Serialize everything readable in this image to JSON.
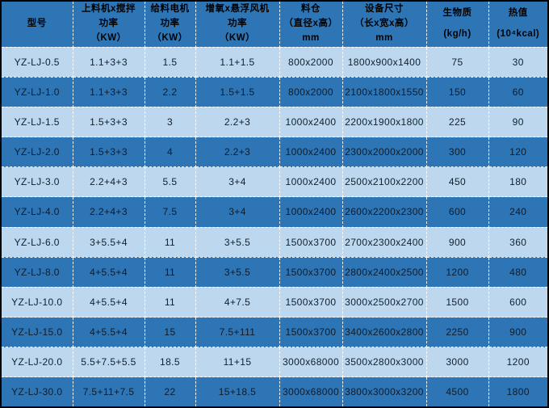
{
  "colors": {
    "header_bg": "#2e75b6",
    "dark_row_bg": "#2e75b6",
    "light_row_bg": "#bdd7ee",
    "grid_line": "#ffffff",
    "outer_border": "#000000",
    "text": "#000000"
  },
  "table": {
    "columns": [
      {
        "id": "model",
        "label_lines": [
          "型号"
        ]
      },
      {
        "id": "feeder-mixer-power",
        "label_lines": [
          "上料机x搅拌",
          "功率",
          "（KW）"
        ]
      },
      {
        "id": "feed-motor-power",
        "label_lines": [
          "给料电机",
          "功率",
          "（KW）"
        ]
      },
      {
        "id": "oxygen-fan-power",
        "label_lines": [
          "增氧x悬浮风机",
          "功率",
          "（KW）"
        ]
      },
      {
        "id": "hopper-size",
        "label_lines": [
          "料仓",
          "（直径x高）",
          "mm"
        ]
      },
      {
        "id": "equipment-size",
        "label_lines": [
          "设备尺寸",
          "（长x宽x高）",
          "mm"
        ]
      },
      {
        "id": "biomass",
        "label_lines": [
          "生物质",
          "(kg/h)"
        ]
      },
      {
        "id": "heat-value",
        "label_lines": [
          "热值",
          "(10⁴kcal)"
        ]
      }
    ],
    "rows": [
      [
        "YZ-LJ-0.5",
        "1.1+3+3",
        "1.5",
        "1.1+1.5",
        "800x2000",
        "1800x900x1400",
        "75",
        "30"
      ],
      [
        "YZ-LJ-1.0",
        "1.1+3+3",
        "2.2",
        "1.5+1.5",
        "800x2000",
        "2100x1800x1550",
        "150",
        "60"
      ],
      [
        "YZ-LJ-1.5",
        "1.5+3+3",
        "3",
        "2.2+3",
        "1000x2400",
        "2200x1900x1800",
        "225",
        "90"
      ],
      [
        "YZ-LJ-2.0",
        "1.5+3+3",
        "4",
        "2.2+3",
        "1000x2400",
        "2300x2000x2000",
        "300",
        "120"
      ],
      [
        "YZ-LJ-3.0",
        "2.2+4+3",
        "5.5",
        "3+4",
        "1000x2400",
        "2500x2100x2200",
        "450",
        "180"
      ],
      [
        "YZ-LJ-4.0",
        "2.2+4+3",
        "7.5",
        "3+4",
        "1000x2400",
        "2600x2200x2300",
        "600",
        "240"
      ],
      [
        "YZ-LJ-6.0",
        "3+5.5+4",
        "11",
        "3+5.5",
        "1500x3700",
        "2700x2300x2400",
        "900",
        "360"
      ],
      [
        "YZ-LJ-8.0",
        "4+5.5+4",
        "11",
        "3+5.5",
        "1500x3700",
        "2800x2400x2500",
        "1200",
        "480"
      ],
      [
        "YZ-LJ-10.0",
        "4+5.5+4",
        "11",
        "4+7.5",
        "1500x3700",
        "3000x2500x2700",
        "1500",
        "600"
      ],
      [
        "YZ-LJ-15.0",
        "4+5.5+4",
        "15",
        "7.5+111",
        "1500x3700",
        "3400x2600x2800",
        "2250",
        "900"
      ],
      [
        "YZ-LJ-20.0",
        "5.5+7.5+5.5",
        "18.5",
        "11+15",
        "3000x68000",
        "3500x2800x3000",
        "3000",
        "1200"
      ],
      [
        "YZ-LJ-30.0",
        "7.5+11+7.5",
        "22",
        "15+18.5",
        "3000x68000",
        "3800x3000x3200",
        "4500",
        "1800"
      ]
    ]
  }
}
